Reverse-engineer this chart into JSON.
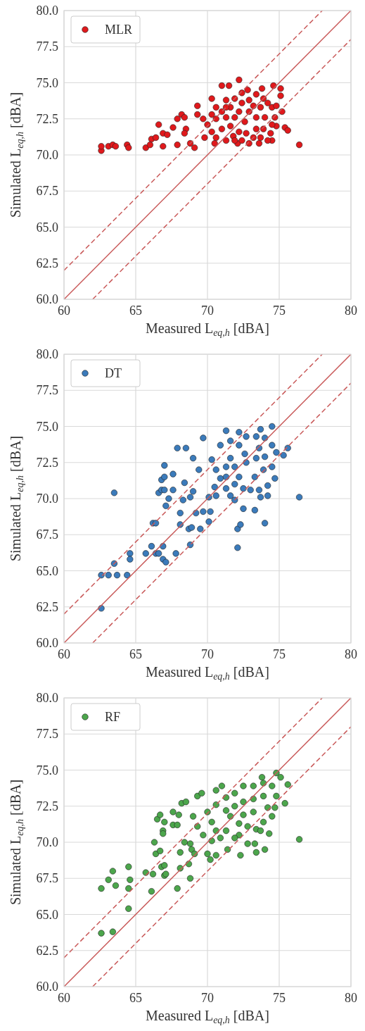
{
  "chart_data": [
    {
      "type": "scatter",
      "xlabel": "Measured L$_{eq,h}$ [dBA]",
      "ylabel": "Simulated L$_{eq,h}$ [dBA]",
      "xlim": [
        60,
        80
      ],
      "ylim": [
        60,
        80
      ],
      "xticks": [
        60,
        65,
        70,
        75,
        80
      ],
      "yticks": [
        {
          "value": 60,
          "label": "60.0"
        },
        {
          "value": 62.5,
          "label": "62.5"
        },
        {
          "value": 65,
          "label": "65.0"
        },
        {
          "value": 67.5,
          "label": "67.5"
        },
        {
          "value": 70,
          "label": "70.0"
        },
        {
          "value": 72.5,
          "label": "72.5"
        },
        {
          "value": 75,
          "label": "75.0"
        },
        {
          "value": 77.5,
          "label": "77.5"
        },
        {
          "value": 80,
          "label": "80.0"
        }
      ],
      "grid": true,
      "legend": "top left",
      "series": [
        {
          "name": "MLR",
          "marker": "circle",
          "color": "#e0191c",
          "x": [
            62.6,
            62.6,
            63.1,
            63.4,
            63.6,
            64.4,
            64.5,
            65.7,
            66.0,
            66.1,
            66.4,
            66.6,
            66.9,
            67.2,
            66.9,
            67.6,
            67.9,
            67.9,
            68.2,
            68.4,
            68.5,
            68.4,
            68.8,
            69.1,
            69.3,
            69.3,
            69.7,
            70.3,
            71.0,
            71.5,
            72.2,
            72.8,
            73.8,
            74.6,
            75.1,
            75.1,
            75.2,
            75.4,
            75.6,
            76.4,
            74.5,
            73.6,
            72.1,
            70.5,
            69.8,
            70.3,
            70.6,
            71.3,
            71.6,
            71.9,
            72.4,
            72.4,
            72.9,
            73.4,
            73.9,
            74.2,
            74.5,
            74.8,
            74.7,
            74.8,
            74.4,
            73.9,
            73.4,
            72.9,
            72.6,
            72.2,
            71.8,
            71.3,
            71.0,
            70.6,
            70.3,
            70.0,
            71.3,
            71.9,
            71.6,
            72.2,
            72.7,
            73.2,
            73.7,
            74.2,
            74.0,
            73.7,
            73.2,
            71.3,
            71.0,
            71.9,
            72.9,
            72.4,
            70.6,
            73.4,
            74.5
          ],
          "values": [
            70.3,
            70.6,
            70.6,
            70.7,
            70.6,
            70.7,
            70.5,
            70.5,
            70.7,
            71.1,
            71.2,
            72.1,
            71.5,
            71.4,
            70.6,
            71.9,
            70.7,
            72.5,
            72.8,
            72.6,
            71.8,
            71.5,
            70.8,
            70.5,
            73.4,
            72.8,
            72.5,
            73.9,
            74.8,
            74.8,
            75.2,
            74.5,
            74.6,
            74.8,
            74.6,
            74.1,
            73.0,
            71.9,
            71.7,
            70.7,
            71.0,
            70.8,
            70.8,
            70.8,
            71.2,
            72.8,
            73.3,
            73.8,
            73.3,
            73.9,
            74.3,
            73.6,
            73.8,
            74.2,
            73.9,
            73.6,
            73.3,
            73.4,
            72.6,
            72.0,
            71.5,
            71.8,
            72.6,
            73.0,
            72.3,
            71.6,
            71.3,
            71.0,
            71.8,
            72.5,
            71.6,
            72.1,
            72.6,
            72.6,
            72.0,
            73.0,
            71.5,
            71.2,
            71.2,
            71.0,
            72.6,
            73.3,
            73.4,
            73.3,
            73.0,
            71.0,
            70.8,
            71.0,
            71.2,
            71.8,
            72.1
          ]
        },
        {
          "type": "line",
          "color": "#c95a5a",
          "line_style": "solid",
          "x": [
            60,
            80
          ],
          "values": [
            60,
            80
          ]
        },
        {
          "type": "line",
          "color": "#c95a5a",
          "line_style": "dashed",
          "x": [
            60,
            78
          ],
          "values": [
            62,
            80
          ]
        },
        {
          "type": "line",
          "color": "#c95a5a",
          "line_style": "dashed",
          "x": [
            62,
            80
          ],
          "values": [
            60,
            78
          ]
        }
      ]
    },
    {
      "type": "scatter",
      "xlabel": "Measured L$_{eq,h}$ [dBA]",
      "ylabel": "Simulated L$_{eq,h}$ [dBA]",
      "xlim": [
        60,
        80
      ],
      "ylim": [
        60,
        80
      ],
      "xticks": [
        60,
        65,
        70,
        75,
        80
      ],
      "yticks": [
        {
          "value": 60,
          "label": "60.0"
        },
        {
          "value": 62.5,
          "label": "62.5"
        },
        {
          "value": 65,
          "label": "65.0"
        },
        {
          "value": 67.5,
          "label": "67.5"
        },
        {
          "value": 70,
          "label": "70.0"
        },
        {
          "value": 72.5,
          "label": "72.5"
        },
        {
          "value": 75,
          "label": "75.0"
        },
        {
          "value": 77.5,
          "label": "77.5"
        },
        {
          "value": 80,
          "label": "80.0"
        }
      ],
      "grid": true,
      "legend": "top left",
      "series": [
        {
          "name": "DT",
          "marker": "circle",
          "color": "#3b7bbb",
          "x": [
            62.6,
            62.6,
            63.1,
            63.7,
            64.4,
            63.5,
            64.6,
            64.6,
            63.5,
            65.7,
            66.1,
            66.4,
            66.6,
            66.9,
            66.9,
            67.1,
            67.8,
            68.8,
            66.2,
            66.4,
            67.1,
            67.3,
            66.6,
            66.8,
            67.0,
            66.8,
            67.0,
            67.0,
            67.6,
            67.6,
            67.9,
            68.5,
            68.1,
            68.1,
            68.7,
            68.9,
            69.5,
            69.2,
            69.7,
            70.2,
            70.1,
            68.3,
            68.8,
            69.0,
            69.7,
            69.4,
            68.4,
            69.0,
            72.1,
            72.1,
            72.3,
            72.5,
            73.3,
            74.0,
            76.4,
            75.6,
            75.3,
            74.5,
            73.7,
            71.3,
            72.2,
            74.2,
            73.7,
            71.9,
            70.3,
            70.6,
            70.9,
            71.3,
            71.6,
            70.6,
            70.9,
            71.6,
            72.2,
            72.7,
            73.4,
            74.0,
            74.5,
            74.8,
            74.5,
            74.7,
            74.2,
            73.6,
            73.0,
            72.5,
            72.2,
            71.9,
            71.6,
            71.3,
            72.7,
            73.4,
            73.9,
            73.3,
            72.6,
            73.6,
            70.5,
            71.3,
            71.9,
            74.0,
            70.1
          ],
          "values": [
            62.4,
            64.7,
            64.7,
            64.7,
            64.7,
            65.5,
            66.2,
            65.8,
            70.4,
            66.2,
            66.7,
            66.2,
            66.2,
            66.7,
            65.8,
            65.6,
            66.2,
            66.8,
            68.3,
            68.3,
            69.5,
            70.0,
            70.4,
            70.6,
            70.6,
            71.3,
            71.5,
            72.3,
            71.7,
            70.6,
            73.5,
            73.5,
            69.0,
            68.2,
            67.9,
            68.0,
            67.9,
            69.0,
            69.1,
            69.1,
            68.4,
            69.9,
            70.1,
            70.5,
            74.2,
            72.0,
            71.1,
            72.8,
            67.9,
            66.6,
            68.2,
            69.3,
            69.2,
            68.3,
            70.1,
            73.5,
            73.0,
            75.0,
            74.8,
            74.7,
            74.6,
            70.2,
            70.1,
            69.9,
            72.7,
            72.0,
            71.4,
            70.7,
            70.2,
            70.2,
            73.7,
            74.0,
            73.7,
            74.3,
            74.3,
            74.2,
            73.7,
            73.2,
            72.2,
            71.4,
            70.9,
            70.6,
            70.6,
            70.7,
            71.5,
            72.2,
            72.8,
            72.2,
            72.5,
            72.8,
            72.0,
            71.5,
            73.1,
            73.5,
            70.8,
            71.5,
            71.0,
            72.9,
            70.1
          ]
        },
        {
          "type": "line",
          "color": "#c95a5a",
          "line_style": "solid",
          "x": [
            60,
            80
          ],
          "values": [
            60,
            80
          ]
        },
        {
          "type": "line",
          "color": "#c95a5a",
          "line_style": "dashed",
          "x": [
            60,
            78
          ],
          "values": [
            62,
            80
          ]
        },
        {
          "type": "line",
          "color": "#c95a5a",
          "line_style": "dashed",
          "x": [
            62,
            80
          ],
          "values": [
            60,
            78
          ]
        }
      ]
    },
    {
      "type": "scatter",
      "xlabel": "Measured L$_{eq,h}$ [dBA]",
      "ylabel": "Simulated L$_{eq,h}$ [dBA]",
      "xlim": [
        60,
        80
      ],
      "ylim": [
        60,
        80
      ],
      "xticks": [
        60,
        65,
        70,
        75,
        80
      ],
      "yticks": [
        {
          "value": 60,
          "label": "60.0"
        },
        {
          "value": 62.5,
          "label": "62.5"
        },
        {
          "value": 65,
          "label": "65.0"
        },
        {
          "value": 67.5,
          "label": "67.5"
        },
        {
          "value": 70,
          "label": "70.0"
        },
        {
          "value": 72.5,
          "label": "72.5"
        },
        {
          "value": 75,
          "label": "75.0"
        },
        {
          "value": 77.5,
          "label": "77.5"
        },
        {
          "value": 80,
          "label": "80.0"
        }
      ],
      "grid": true,
      "legend": "top left",
      "series": [
        {
          "name": "RF",
          "marker": "circle",
          "color": "#4ca64c",
          "x": [
            62.6,
            63.4,
            64.5,
            62.6,
            63.1,
            63.6,
            63.4,
            64.5,
            64.6,
            64.5,
            65.7,
            66.1,
            66.2,
            66.8,
            67.0,
            67.0,
            67.1,
            67.9,
            68.1,
            68.7,
            68.8,
            66.3,
            66.4,
            66.7,
            66.9,
            66.9,
            66.5,
            66.7,
            67.0,
            67.6,
            67.9,
            67.6,
            68.0,
            68.2,
            68.5,
            69.3,
            69.6,
            68.1,
            68.4,
            68.8,
            68.9,
            69.1,
            70.0,
            70.2,
            70.6,
            71.4,
            72.3,
            73.4,
            74.0,
            73.3,
            72.8,
            74.3,
            76.4,
            75.6,
            75.4,
            75.1,
            74.8,
            73.8,
            71.0,
            70.6,
            70.0,
            70.3,
            70.6,
            70.9,
            71.3,
            70.3,
            69.7,
            69.3,
            69.0,
            70.6,
            71.3,
            71.9,
            72.5,
            73.2,
            73.9,
            74.5,
            74.8,
            74.7,
            74.5,
            73.9,
            73.4,
            72.8,
            72.2,
            71.6,
            71.3,
            71.9,
            72.5,
            73.2,
            73.9,
            74.2,
            73.2,
            72.5,
            72.2,
            71.9,
            73.7
          ],
          "values": [
            63.7,
            63.8,
            65.4,
            66.8,
            67.4,
            67.0,
            68.0,
            66.8,
            67.4,
            68.3,
            67.9,
            66.6,
            67.8,
            68.3,
            68.4,
            67.7,
            67.8,
            66.8,
            68.2,
            68.5,
            67.5,
            70.0,
            69.2,
            69.4,
            70.8,
            70.6,
            71.6,
            71.9,
            71.4,
            71.2,
            71.2,
            72.1,
            71.9,
            72.7,
            72.8,
            73.2,
            73.4,
            69.3,
            70.0,
            69.9,
            69.5,
            69.2,
            69.2,
            68.8,
            69.1,
            69.5,
            69.1,
            69.3,
            69.5,
            69.9,
            69.9,
            70.6,
            70.2,
            74.0,
            72.7,
            74.5,
            74.8,
            74.5,
            73.9,
            73.6,
            72.1,
            71.4,
            70.8,
            70.3,
            70.8,
            70.1,
            70.5,
            71.1,
            71.8,
            72.6,
            73.1,
            73.4,
            73.9,
            73.9,
            74.1,
            73.9,
            73.2,
            72.4,
            71.8,
            71.4,
            70.9,
            71.1,
            71.3,
            71.8,
            72.2,
            72.5,
            72.8,
            73.0,
            73.2,
            72.4,
            72.1,
            71.9,
            70.5,
            70.3,
            70.8
          ]
        },
        {
          "type": "line",
          "color": "#c95a5a",
          "line_style": "solid",
          "x": [
            60,
            80
          ],
          "values": [
            60,
            80
          ]
        },
        {
          "type": "line",
          "color": "#c95a5a",
          "line_style": "dashed",
          "x": [
            60,
            78
          ],
          "values": [
            62,
            80
          ]
        },
        {
          "type": "line",
          "color": "#c95a5a",
          "line_style": "dashed",
          "x": [
            62,
            80
          ],
          "values": [
            60,
            78
          ]
        }
      ]
    }
  ]
}
